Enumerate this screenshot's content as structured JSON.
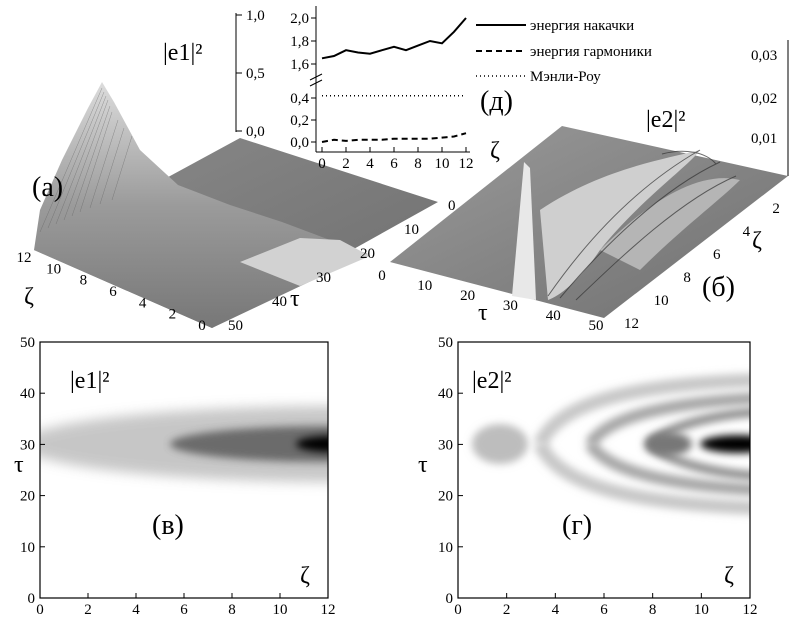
{
  "figure": {
    "panel_a_label": "(а)",
    "panel_b_label": "(б)",
    "panel_v_label": "(в)",
    "panel_g_label": "(г)",
    "panel_d_label": "(д)",
    "e1_label": "|e1|²",
    "e2_label": "|e2|²",
    "zeta": "ζ",
    "tau": "τ"
  },
  "chart_data": [
    {
      "id": "a",
      "type": "surface",
      "title": "(а)",
      "zlabel": "|e1|²",
      "xlabel": "ζ",
      "ylabel": "τ",
      "x_ticks": [
        "12",
        "10",
        "8",
        "6",
        "4",
        "2",
        "0"
      ],
      "y_ticks": [
        "0",
        "10",
        "20",
        "30",
        "40",
        "50"
      ],
      "z_ticks": [
        "1,0",
        "0,5",
        "0,0"
      ],
      "xlim": [
        0,
        12
      ],
      "ylim": [
        0,
        50
      ],
      "zlim": [
        0,
        1.0
      ]
    },
    {
      "id": "b",
      "type": "surface",
      "title": "(б)",
      "zlabel": "|e2|²",
      "xlabel": "ζ",
      "ylabel": "τ",
      "x_ticks": [
        "12",
        "10",
        "8",
        "6",
        "4",
        "2",
        "0"
      ],
      "y_ticks": [
        "0",
        "10",
        "20",
        "30",
        "40",
        "50"
      ],
      "z_ticks": [
        "0,03",
        "0,02",
        "0,01",
        "0"
      ],
      "xlim": [
        0,
        12
      ],
      "ylim": [
        0,
        50
      ],
      "zlim": [
        0,
        0.03
      ]
    },
    {
      "id": "v",
      "type": "heatmap",
      "title": "(в)",
      "label": "|e1|²",
      "xlabel": "ζ",
      "ylabel": "τ",
      "x_ticks": [
        "0",
        "2",
        "4",
        "6",
        "8",
        "10",
        "12"
      ],
      "y_ticks": [
        "0",
        "10",
        "20",
        "30",
        "40",
        "50"
      ],
      "xlim": [
        0,
        12
      ],
      "ylim": [
        0,
        50
      ],
      "center_tau": 30
    },
    {
      "id": "g",
      "type": "heatmap",
      "title": "(г)",
      "label": "|e2|²",
      "xlabel": "ζ",
      "ylabel": "τ",
      "x_ticks": [
        "0",
        "2",
        "4",
        "6",
        "8",
        "10",
        "12"
      ],
      "y_ticks": [
        "0",
        "10",
        "20",
        "30",
        "40",
        "50"
      ],
      "xlim": [
        0,
        12
      ],
      "ylim": [
        0,
        50
      ],
      "center_tau": 30
    },
    {
      "id": "d",
      "type": "line",
      "title": "(д)",
      "xlabel": "ζ",
      "x": [
        0,
        1,
        2,
        3,
        4,
        5,
        6,
        7,
        8,
        9,
        10,
        11,
        12
      ],
      "x_ticks": [
        "0",
        "2",
        "4",
        "6",
        "8",
        "10",
        "12"
      ],
      "y_ticks_upper": [
        "2,0",
        "1,8",
        "1,6"
      ],
      "y_ticks_lower": [
        "0,4",
        "0,2",
        "0,0"
      ],
      "series": [
        {
          "name": "энергия накачки",
          "style": "solid",
          "values": [
            1.65,
            1.67,
            1.72,
            1.7,
            1.69,
            1.72,
            1.75,
            1.72,
            1.76,
            1.8,
            1.78,
            1.88,
            2.0
          ]
        },
        {
          "name": "энергия гармоники",
          "style": "dashed",
          "values": [
            0.0,
            0.02,
            0.01,
            0.02,
            0.02,
            0.02,
            0.03,
            0.03,
            0.03,
            0.03,
            0.04,
            0.05,
            0.08
          ]
        },
        {
          "name": "Мэнли-Роу",
          "style": "dotted",
          "values": [
            0.42,
            0.42,
            0.42,
            0.42,
            0.42,
            0.42,
            0.42,
            0.42,
            0.42,
            0.42,
            0.42,
            0.42,
            0.42
          ]
        }
      ]
    }
  ]
}
